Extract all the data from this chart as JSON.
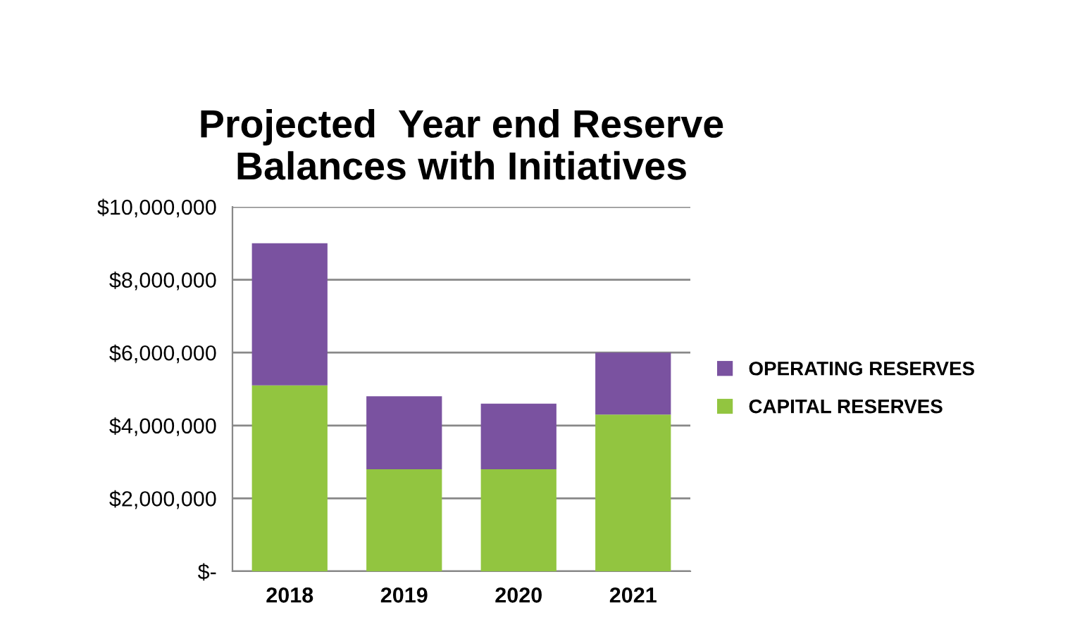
{
  "chart_data": {
    "type": "bar",
    "title": "Projected  Year end Reserve\nBalances with Initiatives",
    "categories": [
      "2018",
      "2019",
      "2020",
      "2021"
    ],
    "stacked": true,
    "series": [
      {
        "name": "CAPITAL RESERVES",
        "color": "#92c540",
        "values": [
          5100000,
          2800000,
          2800000,
          4300000
        ]
      },
      {
        "name": "OPERATING RESERVES",
        "color": "#7a52a0",
        "values": [
          3900000,
          2000000,
          1800000,
          1700000
        ]
      }
    ],
    "ylim": [
      0,
      10000000
    ],
    "yticks": [
      {
        "value": 0,
        "label": "$-"
      },
      {
        "value": 2000000,
        "label": "$2,000,000"
      },
      {
        "value": 4000000,
        "label": "$4,000,000"
      },
      {
        "value": 6000000,
        "label": "$6,000,000"
      },
      {
        "value": 8000000,
        "label": "$8,000,000"
      },
      {
        "value": 10000000,
        "label": "$10,000,000"
      }
    ],
    "grid": "y",
    "legend": "right"
  }
}
